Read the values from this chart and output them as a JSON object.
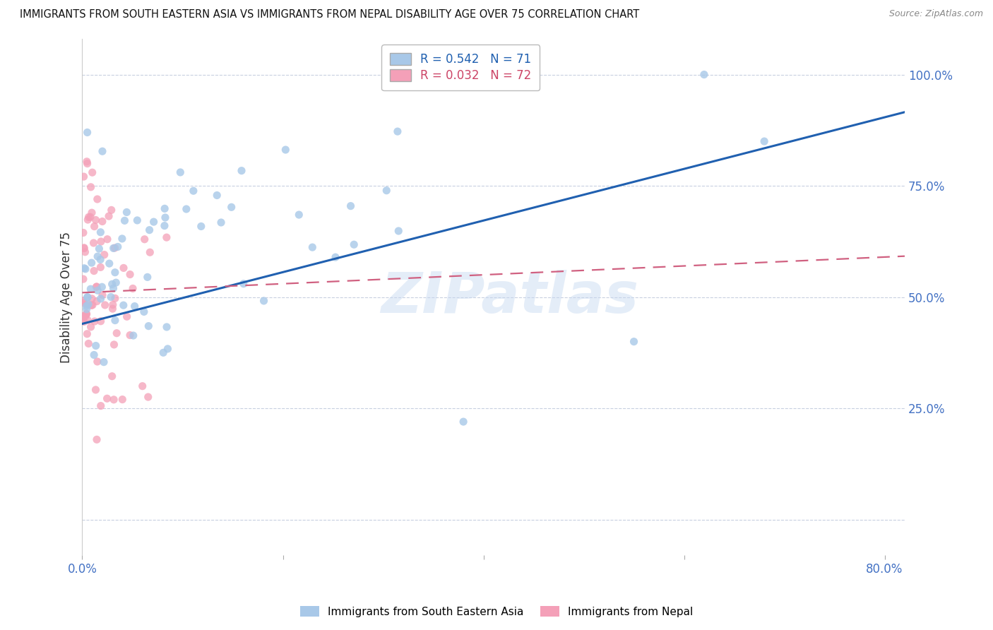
{
  "title": "IMMIGRANTS FROM SOUTH EASTERN ASIA VS IMMIGRANTS FROM NEPAL DISABILITY AGE OVER 75 CORRELATION CHART",
  "source": "Source: ZipAtlas.com",
  "ylabel": "Disability Age Over 75",
  "blue_R": 0.542,
  "blue_N": 71,
  "pink_R": 0.032,
  "pink_N": 72,
  "blue_color": "#a8c8e8",
  "pink_color": "#f4a0b8",
  "trend_blue": "#2060b0",
  "trend_pink": "#d06080",
  "legend_label_blue": "Immigrants from South Eastern Asia",
  "legend_label_pink": "Immigrants from Nepal",
  "watermark": "ZIPatlas",
  "tick_color": "#4472c4",
  "xlim": [
    0.0,
    0.82
  ],
  "ylim": [
    -0.08,
    1.08
  ],
  "yticks": [
    0.0,
    0.25,
    0.5,
    0.75,
    1.0
  ],
  "ytick_labels": [
    "",
    "25.0%",
    "50.0%",
    "75.0%",
    "100.0%"
  ],
  "xtick_labels_left": "0.0%",
  "xtick_labels_right": "80.0%"
}
